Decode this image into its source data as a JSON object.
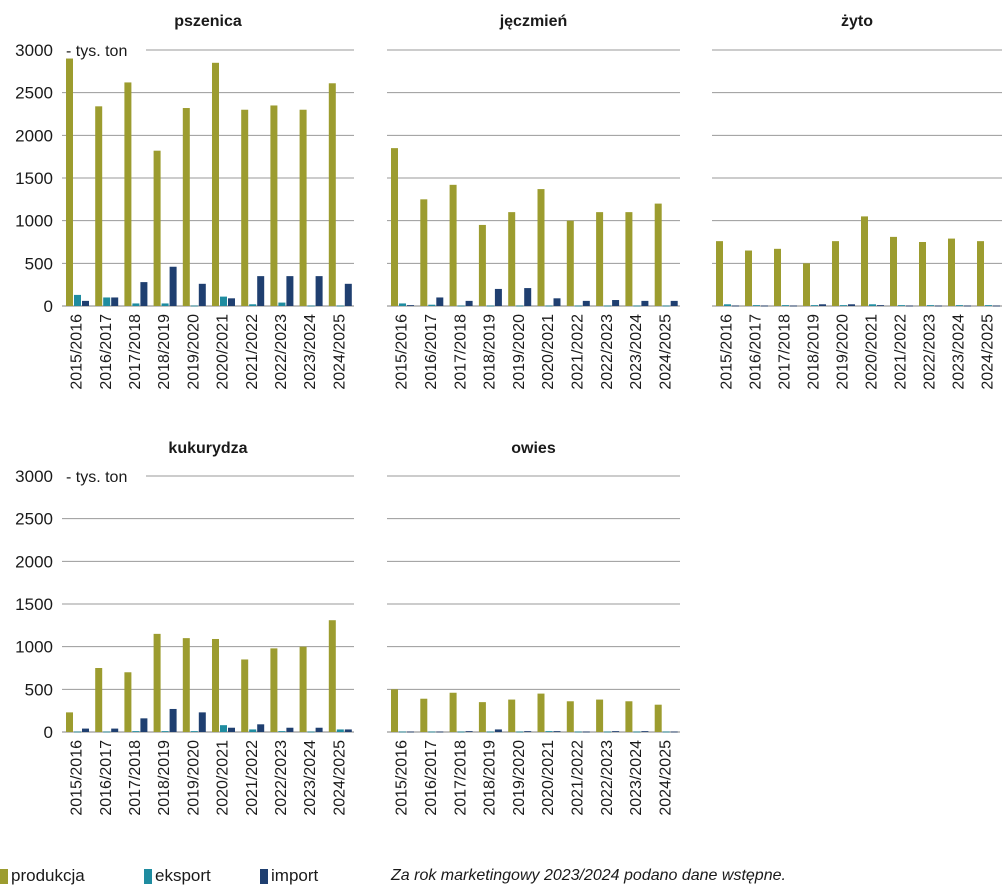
{
  "chart_data": [
    {
      "type": "bar",
      "title": "pszenica",
      "unit_label": "tys. ton",
      "categories": [
        "2015/2016",
        "2016/2017",
        "2017/2018",
        "2018/2019",
        "2019/2020",
        "2020/2021",
        "2021/2022",
        "2022/2023",
        "2023/2024",
        "2024/2025"
      ],
      "ylim": [
        0,
        3000
      ],
      "yticks": [
        "0",
        "500",
        "1000",
        "1500",
        "2000",
        "2500",
        "3000"
      ],
      "series": [
        {
          "name": "produkcja",
          "values": [
            2900,
            2340,
            2620,
            1820,
            2320,
            2850,
            2300,
            2350,
            2300,
            2610
          ]
        },
        {
          "name": "eksport",
          "values": [
            130,
            100,
            30,
            30,
            5,
            110,
            20,
            40,
            5,
            5
          ]
        },
        {
          "name": "import",
          "values": [
            60,
            100,
            280,
            460,
            260,
            90,
            350,
            350,
            350,
            260
          ]
        }
      ]
    },
    {
      "type": "bar",
      "title": "jęczmień",
      "unit_label": "",
      "categories": [
        "2015/2016",
        "2016/2017",
        "2017/2018",
        "2018/2019",
        "2019/2020",
        "2020/2021",
        "2021/2022",
        "2022/2023",
        "2023/2024",
        "2024/2025"
      ],
      "ylim": [
        0,
        3000
      ],
      "yticks": [],
      "series": [
        {
          "name": "produkcja",
          "values": [
            1850,
            1250,
            1420,
            950,
            1100,
            1370,
            1000,
            1100,
            1100,
            1200
          ]
        },
        {
          "name": "eksport",
          "values": [
            30,
            15,
            5,
            5,
            5,
            5,
            5,
            5,
            5,
            5
          ]
        },
        {
          "name": "import",
          "values": [
            10,
            100,
            60,
            200,
            210,
            90,
            60,
            70,
            60,
            60
          ]
        }
      ]
    },
    {
      "type": "bar",
      "title": "żyto",
      "unit_label": "",
      "categories": [
        "2015/2016",
        "2016/2017",
        "2017/2018",
        "2018/2019",
        "2019/2020",
        "2020/2021",
        "2021/2022",
        "2022/2023",
        "2023/2024",
        "2024/2025"
      ],
      "ylim": [
        0,
        3000
      ],
      "yticks": [],
      "series": [
        {
          "name": "produkcja",
          "values": [
            760,
            650,
            670,
            500,
            760,
            1050,
            810,
            750,
            790,
            760
          ]
        },
        {
          "name": "eksport",
          "values": [
            20,
            10,
            10,
            10,
            10,
            20,
            10,
            10,
            10,
            10
          ]
        },
        {
          "name": "import",
          "values": [
            5,
            5,
            5,
            20,
            20,
            10,
            5,
            5,
            5,
            5
          ]
        }
      ]
    },
    {
      "type": "bar",
      "title": "kukurydza",
      "unit_label": "tys. ton",
      "categories": [
        "2015/2016",
        "2016/2017",
        "2017/2018",
        "2018/2019",
        "2019/2020",
        "2020/2021",
        "2021/2022",
        "2022/2023",
        "2023/2024",
        "2024/2025"
      ],
      "ylim": [
        0,
        3000
      ],
      "yticks": [
        "0",
        "500",
        "1000",
        "1500",
        "2000",
        "2500",
        "3000"
      ],
      "series": [
        {
          "name": "produkcja",
          "values": [
            230,
            750,
            700,
            1150,
            1100,
            1090,
            850,
            980,
            1000,
            1310
          ]
        },
        {
          "name": "eksport",
          "values": [
            5,
            5,
            10,
            10,
            10,
            80,
            30,
            10,
            5,
            30
          ]
        },
        {
          "name": "import",
          "values": [
            40,
            40,
            160,
            270,
            230,
            50,
            90,
            50,
            50,
            30
          ]
        }
      ]
    },
    {
      "type": "bar",
      "title": "owies",
      "unit_label": "",
      "categories": [
        "2015/2016",
        "2016/2017",
        "2017/2018",
        "2018/2019",
        "2019/2020",
        "2020/2021",
        "2021/2022",
        "2022/2023",
        "2023/2024",
        "2024/2025"
      ],
      "ylim": [
        0,
        3000
      ],
      "yticks": [],
      "series": [
        {
          "name": "produkcja",
          "values": [
            500,
            390,
            460,
            350,
            380,
            450,
            360,
            380,
            360,
            320
          ]
        },
        {
          "name": "eksport",
          "values": [
            5,
            5,
            5,
            5,
            5,
            10,
            5,
            5,
            5,
            5
          ]
        },
        {
          "name": "import",
          "values": [
            5,
            5,
            10,
            30,
            10,
            10,
            5,
            10,
            10,
            5
          ]
        }
      ]
    }
  ],
  "colors": {
    "produkcja": "#9c9c2f",
    "eksport": "#1f8ca0",
    "import": "#1f3f70",
    "grid": "#9a9a9a"
  },
  "legend": [
    "produkcja",
    "eksport",
    "import"
  ],
  "note": "Za rok marketingowy 2023/2024 podano dane wstępne."
}
